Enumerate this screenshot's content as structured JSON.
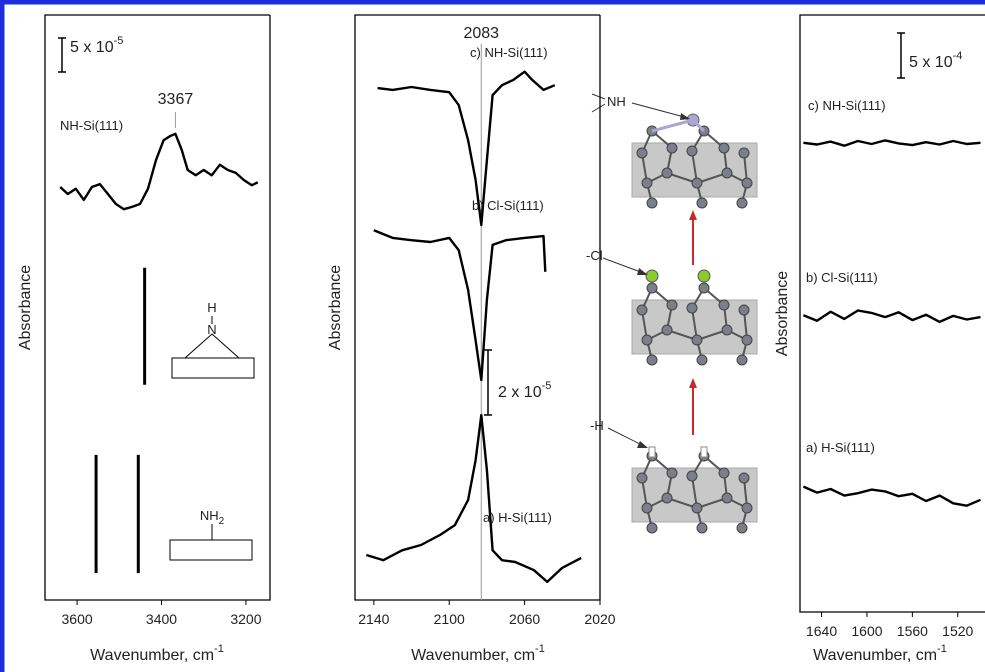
{
  "chart_data": [
    {
      "type": "line",
      "x_label": "Wavenumber, cm",
      "x_label_sup": "-1",
      "y_label": "Absorbance",
      "scale_label": "5 x 10",
      "scale_exponent": "-5",
      "xlim": [
        3676,
        3143
      ],
      "ylim": [
        0,
        100
      ],
      "xticks": [
        3600,
        3400,
        3200
      ],
      "peak": 3367,
      "series": [
        {
          "name": "NH-Si(111)",
          "color": "#000000",
          "x": [
            3640,
            3622,
            3603,
            3584,
            3565,
            3546,
            3527,
            3508,
            3489,
            3470,
            3451,
            3432,
            3413,
            3395,
            3380,
            3367,
            3352,
            3338,
            3319,
            3300,
            3281,
            3262,
            3243,
            3224,
            3205,
            3186,
            3172
          ],
          "values": [
            70.6,
            69.4,
            70.3,
            68.4,
            70.6,
            71.1,
            69.4,
            67.7,
            66.8,
            67.2,
            67.7,
            70.3,
            75.2,
            78.6,
            79.3,
            79.7,
            76.9,
            73.5,
            72.6,
            73.5,
            72.6,
            74.4,
            73.5,
            73.0,
            71.8,
            70.9,
            71.4
          ]
        }
      ],
      "sticks": [
        {
          "x": 3440,
          "y": [
            36.8,
            56.8
          ]
        },
        {
          "x": 3555,
          "y": [
            4.6,
            24.8
          ]
        },
        {
          "x": 3455,
          "y": [
            4.6,
            24.8
          ]
        }
      ],
      "insets": [
        {
          "labels": [
            "H",
            "N"
          ]
        },
        {
          "labels": [
            "NH",
            "2"
          ]
        }
      ]
    },
    {
      "type": "line",
      "x_label": "Wavenumber, cm",
      "x_label_sup": "-1",
      "y_label": "Absorbance",
      "scale_label": "2 x 10",
      "scale_exponent": "-5",
      "xlim": [
        2150,
        2020
      ],
      "ylim": [
        0,
        100
      ],
      "xticks": [
        2140,
        2100,
        2060,
        2020
      ],
      "peak": 2083,
      "series": [
        {
          "name": "c) NH-Si(111)",
          "color": "#000000",
          "x": [
            2138,
            2130,
            2120,
            2110,
            2100,
            2095,
            2090,
            2086,
            2083,
            2080,
            2077,
            2072,
            2066,
            2060,
            2056,
            2050,
            2044
          ],
          "values": [
            87.5,
            87.2,
            87.7,
            87.2,
            86.8,
            84.6,
            78.6,
            71.8,
            64.1,
            75.2,
            86.3,
            88.0,
            88.9,
            90.3,
            88.9,
            87.2,
            88.0
          ]
        },
        {
          "name": "b) Cl-Si(111)",
          "color": "#000000",
          "x": [
            2140,
            2130,
            2120,
            2110,
            2100,
            2095,
            2090,
            2086,
            2083,
            2080,
            2077,
            2070,
            2060,
            2050,
            2049
          ],
          "values": [
            63.2,
            61.9,
            61.5,
            61.2,
            61.9,
            59.8,
            53.0,
            44.4,
            37.6,
            51.3,
            60.7,
            61.5,
            61.9,
            62.2,
            56.1
          ]
        },
        {
          "name": "a) H-Si(111)",
          "color": "#000000",
          "x": [
            2144,
            2135,
            2125,
            2115,
            2105,
            2097,
            2090,
            2086,
            2083,
            2080,
            2077,
            2072,
            2065,
            2055,
            2048,
            2040,
            2030
          ],
          "values": [
            7.7,
            6.8,
            8.5,
            9.4,
            11.1,
            12.8,
            17.1,
            23.9,
            31.6,
            22.2,
            8.5,
            6.8,
            6.5,
            5.1,
            3.1,
            5.5,
            7.2
          ]
        }
      ]
    },
    {
      "type": "line",
      "x_label": "Wavenumber, cm",
      "x_label_sup": "-1",
      "y_label": "Absorbance",
      "scale_label": "5 x 10",
      "scale_exponent": "-4",
      "xlim": [
        1659,
        1496
      ],
      "ylim": [
        0,
        100
      ],
      "xticks": [
        1640,
        1600,
        1560,
        1520
      ],
      "series": [
        {
          "name": "c) NH-Si(111)",
          "color": "#000000",
          "x": [
            1656,
            1644,
            1632,
            1620,
            1608,
            1596,
            1584,
            1572,
            1560,
            1548,
            1536,
            1524,
            1512,
            1500
          ],
          "values": [
            78.6,
            78.3,
            78.8,
            78.1,
            78.9,
            78.4,
            79.0,
            78.5,
            78.2,
            78.7,
            78.3,
            78.9,
            78.4,
            78.6
          ]
        },
        {
          "name": "b) Cl-Si(111)",
          "color": "#000000",
          "x": [
            1656,
            1644,
            1632,
            1620,
            1608,
            1596,
            1584,
            1572,
            1560,
            1548,
            1536,
            1524,
            1512,
            1500
          ],
          "values": [
            49.7,
            48.8,
            50.3,
            49.1,
            50.5,
            50.1,
            49.4,
            50.2,
            48.9,
            49.8,
            48.6,
            49.6,
            49.0,
            49.4
          ]
        },
        {
          "name": "a) H-Si(111)",
          "color": "#000000",
          "x": [
            1656,
            1644,
            1632,
            1620,
            1608,
            1596,
            1584,
            1572,
            1560,
            1548,
            1536,
            1524,
            1512,
            1500
          ],
          "values": [
            21.0,
            20.0,
            20.6,
            19.5,
            19.9,
            20.5,
            20.2,
            19.4,
            19.8,
            18.6,
            19.5,
            18.2,
            17.8,
            18.8
          ]
        }
      ]
    }
  ],
  "diagram": {
    "labels": [
      "NH",
      "-Cl",
      "-H"
    ]
  }
}
